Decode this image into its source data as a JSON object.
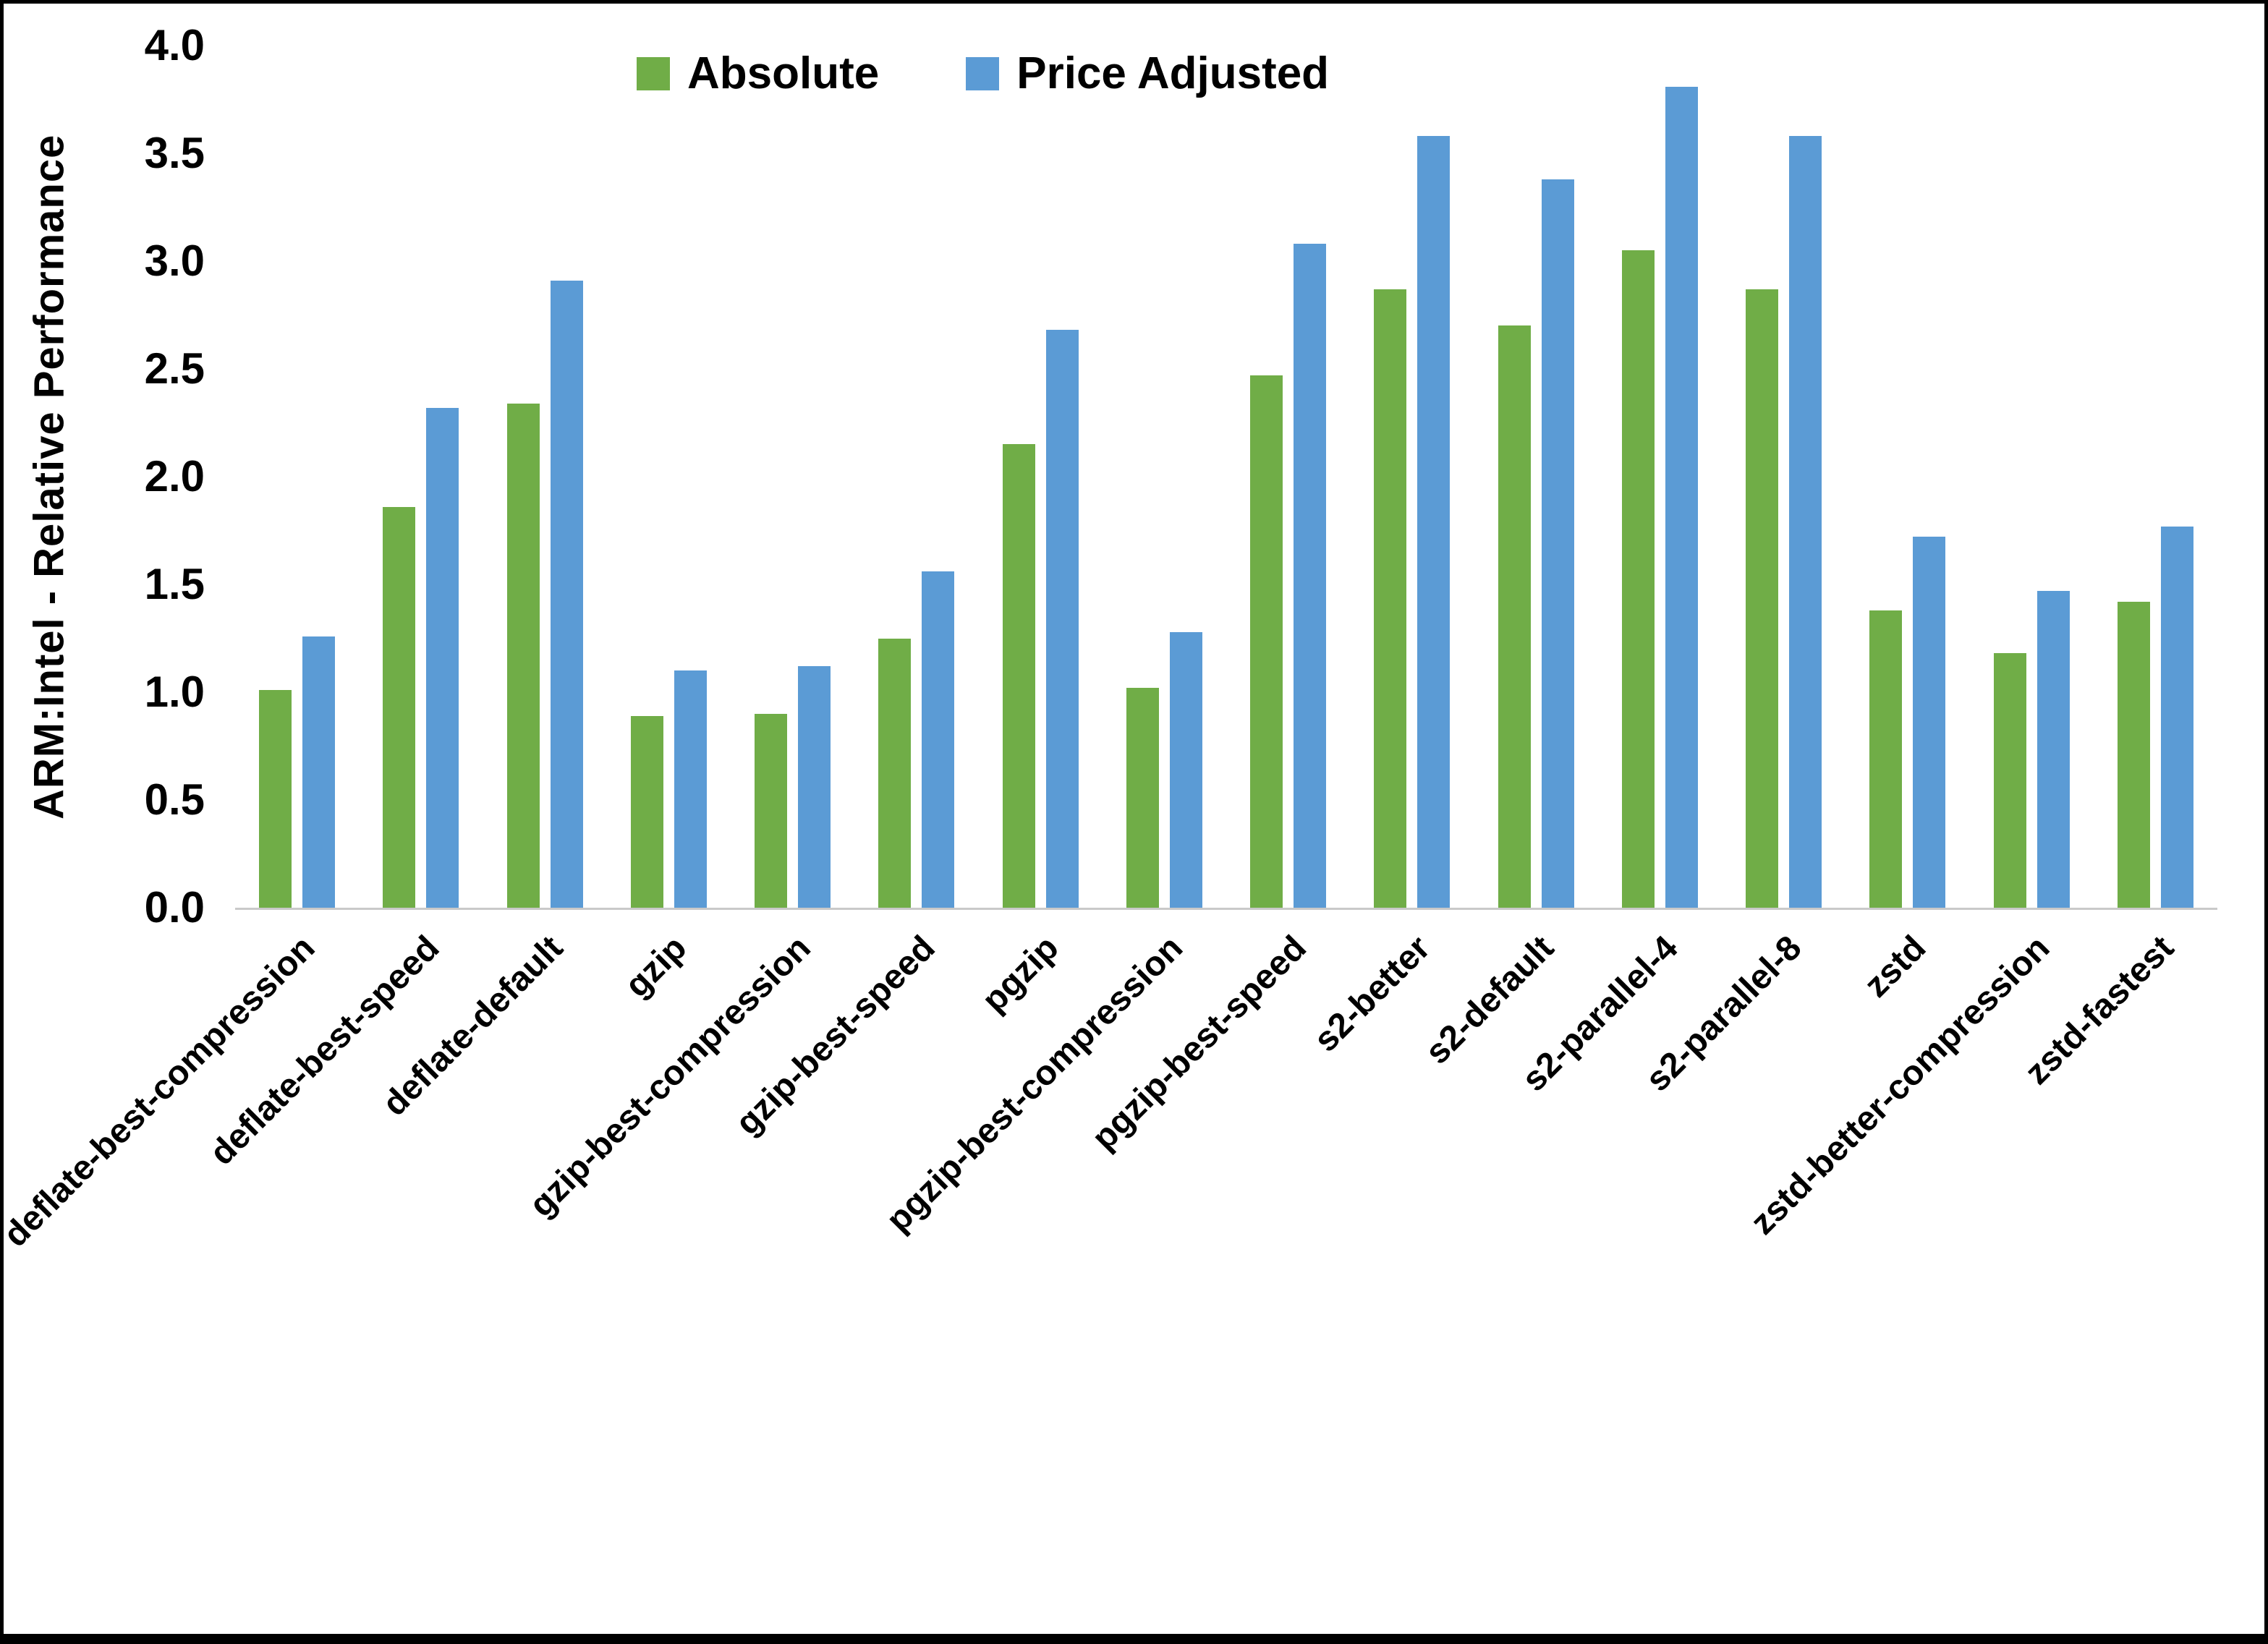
{
  "y_axis": {
    "title": "ARM:Intel - Relative Performance"
  },
  "chart_data": {
    "type": "bar",
    "title": "",
    "xlabel": "",
    "ylabel": "ARM:Intel - Relative Performance",
    "ylim": [
      0,
      4.0
    ],
    "ytick_labels": [
      "0.0",
      "0.5",
      "1.0",
      "1.5",
      "2.0",
      "2.5",
      "3.0",
      "3.5",
      "4.0"
    ],
    "grid": false,
    "legend_position": "top",
    "categories": [
      "deflate-best-compression",
      "deflate-best-speed",
      "deflate-default",
      "gzip",
      "gzip-best-compression",
      "gzip-best-speed",
      "pgzip",
      "pgzip-best-compression",
      "pgzip-best-speed",
      "s2-better",
      "s2-default",
      "s2-parallel-4",
      "s2-parallel-8",
      "zstd",
      "zstd-better-compression",
      "zstd-fastest"
    ],
    "series": [
      {
        "name": "Absolute",
        "color": "#70AD47",
        "values": [
          1.01,
          1.86,
          2.34,
          0.89,
          0.9,
          1.25,
          2.15,
          1.02,
          2.47,
          2.87,
          2.7,
          3.05,
          2.87,
          1.38,
          1.18,
          1.42
        ]
      },
      {
        "name": "Price Adjusted",
        "color": "#5B9BD5",
        "values": [
          1.26,
          2.32,
          2.91,
          1.1,
          1.12,
          1.56,
          2.68,
          1.28,
          3.08,
          3.58,
          3.38,
          3.81,
          3.58,
          1.72,
          1.47,
          1.77
        ]
      }
    ]
  }
}
